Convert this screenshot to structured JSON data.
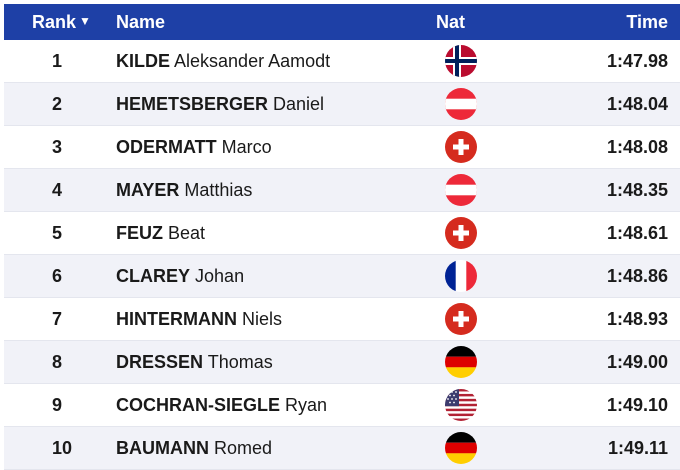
{
  "header": {
    "rank": "Rank",
    "sort_icon": "▼",
    "name": "Name",
    "nat": "Nat",
    "time": "Time"
  },
  "colors": {
    "header_bg": "#1e40a6",
    "row_alt_bg": "#f1f2f8"
  },
  "rows": [
    {
      "rank": "1",
      "last": "KILDE",
      "first": "Aleksander Aamodt",
      "nat_icon": "norway-flag-icon",
      "time": "1:47.98"
    },
    {
      "rank": "2",
      "last": "HEMETSBERGER",
      "first": "Daniel",
      "nat_icon": "austria-flag-icon",
      "time": "1:48.04"
    },
    {
      "rank": "3",
      "last": "ODERMATT",
      "first": "Marco",
      "nat_icon": "switzerland-flag-icon",
      "time": "1:48.08"
    },
    {
      "rank": "4",
      "last": "MAYER",
      "first": "Matthias",
      "nat_icon": "austria-flag-icon",
      "time": "1:48.35"
    },
    {
      "rank": "5",
      "last": "FEUZ",
      "first": "Beat",
      "nat_icon": "switzerland-flag-icon",
      "time": "1:48.61"
    },
    {
      "rank": "6",
      "last": "CLAREY",
      "first": "Johan",
      "nat_icon": "france-flag-icon",
      "time": "1:48.86"
    },
    {
      "rank": "7",
      "last": "HINTERMANN",
      "first": "Niels",
      "nat_icon": "switzerland-flag-icon",
      "time": "1:48.93"
    },
    {
      "rank": "8",
      "last": "DRESSEN",
      "first": "Thomas",
      "nat_icon": "germany-flag-icon",
      "time": "1:49.00"
    },
    {
      "rank": "9",
      "last": "COCHRAN-SIEGLE",
      "first": "Ryan",
      "nat_icon": "usa-flag-icon",
      "time": "1:49.10"
    },
    {
      "rank": "10",
      "last": "BAUMANN",
      "first": "Romed",
      "nat_icon": "germany-flag-icon",
      "time": "1:49.11"
    }
  ]
}
